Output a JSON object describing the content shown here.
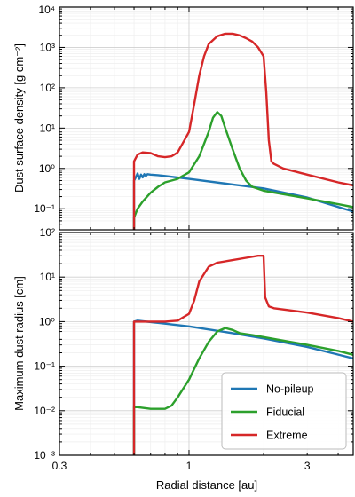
{
  "colors": {
    "no_pileup": "#1f77b4",
    "fiducial": "#2ca02c",
    "extreme": "#d62728",
    "grid_major": "#cfcfcf",
    "grid_minor": "#eeeeee"
  },
  "chart_data": [
    {
      "type": "line",
      "panel": "top",
      "xscale": "log",
      "yscale": "log",
      "xlim": [
        0.3,
        4.6
      ],
      "ylim": [
        0.03,
        10000
      ],
      "ylabel": "Dust surface density [g cm⁻²]",
      "y_ticks": [
        {
          "value": 0.1,
          "label": "10⁻¹"
        },
        {
          "value": 1,
          "label": "10⁰"
        },
        {
          "value": 10,
          "label": "10¹"
        },
        {
          "value": 100,
          "label": "10²"
        },
        {
          "value": 1000,
          "label": "10³"
        },
        {
          "value": 10000,
          "label": "10⁴"
        }
      ],
      "grid": true,
      "series": [
        {
          "key": "no_pileup",
          "x": [
            0.6,
            0.6,
            0.61,
            0.62,
            0.63,
            0.64,
            0.65,
            0.66,
            0.67,
            0.68,
            0.7,
            0.75,
            0.8,
            1.0,
            1.5,
            2.0,
            3.0,
            4.6
          ],
          "y": [
            0.03,
            0.5,
            0.6,
            0.75,
            0.55,
            0.7,
            0.6,
            0.72,
            0.65,
            0.72,
            0.7,
            0.68,
            0.65,
            0.55,
            0.4,
            0.32,
            0.19,
            0.085
          ]
        },
        {
          "key": "fiducial",
          "x": [
            0.6,
            0.6,
            0.62,
            0.65,
            0.7,
            0.75,
            0.8,
            0.9,
            1.0,
            1.1,
            1.2,
            1.25,
            1.3,
            1.35,
            1.4,
            1.5,
            1.6,
            1.7,
            1.8,
            2.0,
            2.5,
            3.0,
            4.0,
            4.6
          ],
          "y": [
            0.03,
            0.06,
            0.1,
            0.15,
            0.25,
            0.35,
            0.45,
            0.55,
            0.8,
            2.0,
            8.0,
            18.0,
            25.0,
            20.0,
            10.0,
            3.0,
            1.0,
            0.5,
            0.35,
            0.28,
            0.22,
            0.18,
            0.13,
            0.11
          ]
        },
        {
          "key": "extreme",
          "x": [
            0.6,
            0.6,
            0.62,
            0.65,
            0.7,
            0.75,
            0.8,
            0.85,
            0.9,
            1.0,
            1.05,
            1.1,
            1.15,
            1.2,
            1.3,
            1.4,
            1.5,
            1.6,
            1.7,
            1.8,
            1.9,
            2.0,
            2.05,
            2.1,
            2.15,
            2.2,
            2.4,
            3.0,
            4.0,
            4.6
          ],
          "y": [
            0.03,
            1.5,
            2.2,
            2.5,
            2.4,
            2.0,
            1.9,
            2.0,
            2.5,
            8.0,
            40.0,
            200.0,
            600.0,
            1200.0,
            1900.0,
            2200.0,
            2200.0,
            2000.0,
            1700.0,
            1400.0,
            1000.0,
            600.0,
            80.0,
            5.0,
            1.5,
            1.3,
            1.0,
            0.7,
            0.45,
            0.38
          ]
        }
      ]
    },
    {
      "type": "line",
      "panel": "bottom",
      "xscale": "log",
      "yscale": "log",
      "xlim": [
        0.3,
        4.6
      ],
      "ylim": [
        0.001,
        100
      ],
      "xlabel": "Radial distance [au]",
      "ylabel": "Maximum dust radius [cm]",
      "x_ticks": [
        {
          "value": 0.3,
          "label": "0.3"
        },
        {
          "value": 1,
          "label": "1"
        },
        {
          "value": 3,
          "label": "3"
        }
      ],
      "y_ticks": [
        {
          "value": 0.001,
          "label": "10⁻³"
        },
        {
          "value": 0.01,
          "label": "10⁻²"
        },
        {
          "value": 0.1,
          "label": "10⁻¹"
        },
        {
          "value": 1,
          "label": "10⁰"
        },
        {
          "value": 10,
          "label": "10¹"
        },
        {
          "value": 100,
          "label": "10²"
        }
      ],
      "grid": true,
      "legend": {
        "position": "lower-right",
        "entries": [
          {
            "key": "no_pileup",
            "label": "No-pileup"
          },
          {
            "key": "fiducial",
            "label": "Fiducial"
          },
          {
            "key": "extreme",
            "label": "Extreme"
          }
        ]
      },
      "series": [
        {
          "key": "no_pileup",
          "x": [
            0.6,
            0.6,
            0.62,
            0.8,
            1.0,
            1.5,
            2.0,
            3.0,
            4.6
          ],
          "y": [
            0.001,
            1.0,
            1.05,
            0.9,
            0.78,
            0.55,
            0.42,
            0.27,
            0.15
          ]
        },
        {
          "key": "fiducial",
          "x": [
            0.6,
            0.6,
            0.62,
            0.7,
            0.8,
            0.85,
            0.9,
            1.0,
            1.1,
            1.2,
            1.3,
            1.4,
            1.5,
            1.6,
            1.8,
            2.0,
            2.5,
            3.0,
            4.0,
            4.6
          ],
          "y": [
            0.001,
            0.012,
            0.012,
            0.011,
            0.011,
            0.013,
            0.02,
            0.05,
            0.15,
            0.35,
            0.6,
            0.72,
            0.65,
            0.55,
            0.5,
            0.45,
            0.36,
            0.3,
            0.22,
            0.18
          ]
        },
        {
          "key": "extreme",
          "x": [
            0.6,
            0.6,
            0.62,
            0.7,
            0.8,
            0.9,
            1.0,
            1.05,
            1.1,
            1.2,
            1.3,
            1.5,
            1.7,
            1.9,
            2.0,
            2.03,
            2.1,
            2.2,
            3.0,
            4.0,
            4.6
          ],
          "y": [
            0.001,
            1.0,
            1.0,
            1.0,
            1.0,
            1.05,
            1.5,
            3.0,
            8.0,
            17.0,
            21.0,
            24.0,
            27.0,
            30.0,
            30.0,
            3.5,
            2.2,
            2.0,
            1.6,
            1.2,
            1.0
          ]
        }
      ]
    }
  ]
}
